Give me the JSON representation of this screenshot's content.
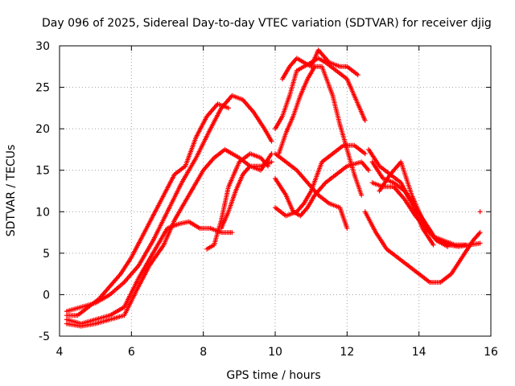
{
  "chart_data": {
    "type": "scatter",
    "title": "Day 096 of 2025, Sidereal Day-to-day VTEC variation (SDTVAR) for receiver djig",
    "xlabel": "GPS time / hours",
    "ylabel": "SDTVAR / TECUs",
    "xlim": [
      4,
      16
    ],
    "ylim": [
      -5,
      30
    ],
    "xticks": [
      "4",
      "6",
      "8",
      "10",
      "12",
      "14",
      "16"
    ],
    "yticks": [
      "-5",
      "0",
      "5",
      "10",
      "15",
      "20",
      "25",
      "30"
    ],
    "grid": true,
    "marker": "plus",
    "color": "#ff0000",
    "series": [
      {
        "x": [
          4.2,
          4.6,
          5.0,
          5.4,
          5.8,
          6.2,
          6.6,
          7.0,
          7.4,
          7.8,
          8.2,
          8.5,
          8.8,
          9.1,
          9.4,
          9.7,
          9.9
        ],
        "y": [
          -2,
          -1.5,
          -1,
          0,
          1.5,
          3.5,
          6.5,
          10,
          13.5,
          16.5,
          20,
          22.5,
          24,
          23.5,
          22,
          20,
          18.5
        ]
      },
      {
        "x": [
          4.2,
          4.5,
          4.8,
          5.1,
          5.4,
          5.7,
          6.0,
          6.3,
          6.6,
          6.9,
          7.2,
          7.5,
          7.8,
          8.1,
          8.4,
          8.7
        ],
        "y": [
          -2.5,
          -2.5,
          -1.5,
          -0.5,
          1,
          2.5,
          4.5,
          7,
          9.5,
          12,
          14.5,
          15.5,
          19,
          21.5,
          23,
          22.5
        ]
      },
      {
        "x": [
          4.2,
          4.6,
          5.0,
          5.4,
          5.8,
          6.2,
          6.6,
          7.0,
          7.3,
          7.6,
          7.9,
          8.2,
          8.5,
          8.8
        ],
        "y": [
          -3,
          -3.5,
          -3,
          -2.5,
          -1.5,
          2,
          5,
          8,
          8.5,
          8.8,
          8,
          8,
          7.5,
          7.5
        ]
      },
      {
        "x": [
          4.2,
          4.6,
          5.0,
          5.4,
          5.8,
          6.2,
          6.5,
          6.9,
          7.2,
          7.6,
          8.0,
          8.3,
          8.6,
          9.0,
          9.3,
          9.6,
          9.9
        ],
        "y": [
          -3.5,
          -3.8,
          -3.5,
          -3,
          -2.5,
          1,
          3.5,
          6,
          9,
          12,
          15,
          16.5,
          17.5,
          16.5,
          15.5,
          15.5,
          16
        ]
      },
      {
        "x": [
          8.1,
          8.3,
          8.5,
          8.7,
          9.0,
          9.3,
          9.6,
          9.8
        ],
        "y": [
          5.5,
          6,
          9,
          13,
          16,
          17,
          16.5,
          15.5
        ]
      },
      {
        "x": [
          8.5,
          8.7,
          8.9,
          9.1,
          9.3,
          9.6,
          9.9
        ],
        "y": [
          8,
          10,
          12.5,
          14.5,
          15.5,
          15,
          17
        ]
      },
      {
        "x": [
          10.0,
          10.2,
          10.4,
          10.6,
          10.8,
          11.0,
          11.2,
          11.4,
          11.7,
          12.0,
          12.3,
          12.5
        ],
        "y": [
          20,
          21.5,
          24,
          27,
          27.5,
          28,
          28.5,
          28,
          27,
          26,
          23,
          21
        ]
      },
      {
        "x": [
          10.2,
          10.4,
          10.6,
          10.8,
          11.0,
          11.2,
          11.5,
          11.8,
          12.0,
          12.3
        ],
        "y": [
          26,
          27.5,
          28.5,
          28,
          27.5,
          29.5,
          28,
          27.5,
          27.5,
          26.5
        ]
      },
      {
        "x": [
          10.1,
          10.3,
          10.5,
          10.7,
          10.9,
          11.1,
          11.3,
          11.6,
          11.8,
          12.0,
          12.2,
          12.4
        ],
        "y": [
          17,
          19.5,
          21.5,
          24,
          26,
          27.5,
          27.5,
          24,
          20.5,
          17.5,
          14.5,
          12
        ]
      },
      {
        "x": [
          10.0,
          10.3,
          10.6,
          10.9,
          11.2,
          11.5,
          11.8,
          12.0
        ],
        "y": [
          17,
          16,
          15,
          13.5,
          12,
          11,
          10.5,
          8
        ]
      },
      {
        "x": [
          10.0,
          10.3,
          10.6,
          10.8,
          11.0,
          11.3,
          11.6,
          11.9,
          12.2,
          12.5
        ],
        "y": [
          10.5,
          9.5,
          10,
          11,
          12.5,
          16,
          17,
          18,
          18,
          17
        ]
      },
      {
        "x": [
          10.0,
          10.3,
          10.5,
          10.7,
          10.9,
          11.1,
          11.4,
          11.7,
          12.0,
          12.4,
          12.6
        ],
        "y": [
          14,
          12,
          10,
          9.5,
          10.5,
          12,
          13.5,
          14.5,
          15.5,
          16,
          15
        ]
      },
      {
        "x": [
          12.5,
          12.8,
          13.1,
          13.4,
          13.7,
          14.0,
          14.3,
          14.6,
          14.9,
          15.2,
          15.5,
          15.7
        ],
        "y": [
          10,
          7.5,
          5.5,
          4.5,
          3.5,
          2.5,
          1.5,
          1.5,
          2.5,
          4.5,
          6.5,
          7.5
        ]
      },
      {
        "x": [
          12.7,
          13.0,
          13.3,
          13.6,
          13.9,
          14.2,
          14.5,
          14.8,
          15.1,
          15.4,
          15.7
        ],
        "y": [
          13.5,
          13,
          13,
          11.5,
          9.5,
          8,
          6.5,
          6,
          5.8,
          6,
          6.2
        ]
      },
      {
        "x": [
          12.6,
          12.9,
          13.2,
          13.5,
          13.8,
          14.1,
          14.4
        ],
        "y": [
          17.5,
          15.5,
          14.5,
          13.5,
          11,
          8,
          6
        ]
      },
      {
        "x": [
          12.7,
          13.0,
          13.3,
          13.6,
          13.9,
          14.2,
          14.5,
          14.8
        ],
        "y": [
          16,
          14,
          13.5,
          12.5,
          10.5,
          8.5,
          6.5,
          5.8
        ]
      },
      {
        "x": [
          12.9,
          13.2,
          13.5,
          13.8,
          14.1,
          14.4,
          14.7,
          15.0,
          15.3
        ],
        "y": [
          12.5,
          14.5,
          16,
          12,
          9,
          7,
          6.5,
          6,
          6
        ]
      },
      {
        "x": [
          15.7
        ],
        "y": [
          10
        ]
      }
    ]
  }
}
